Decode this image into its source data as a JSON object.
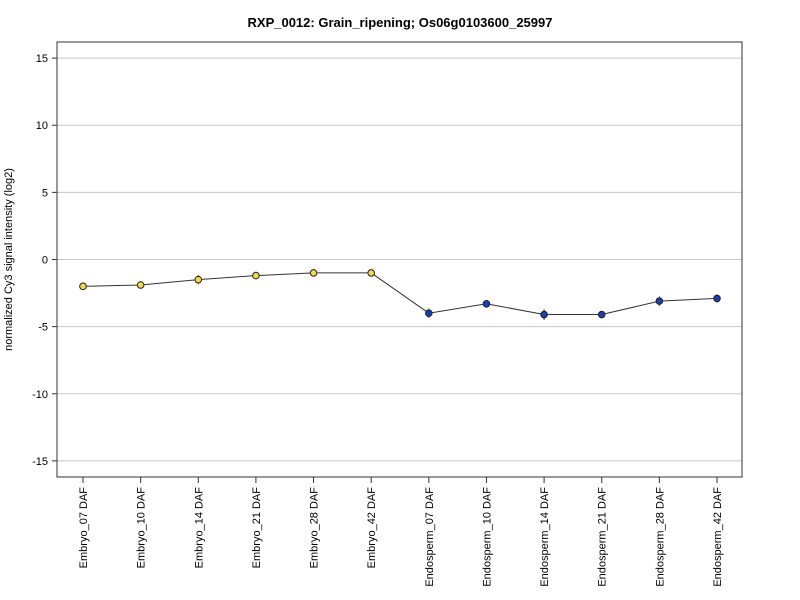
{
  "chart_data": {
    "type": "line",
    "title": "RXP_0012: Grain_ripening; Os06g0103600_25997",
    "ylabel": "normalized Cy3 signal intensity (log2)",
    "xlabel": "",
    "ylim": [
      -16.2,
      16.2
    ],
    "yticks": [
      15,
      10,
      5,
      0,
      -5,
      -10,
      -15
    ],
    "ytick_labels": [
      "15",
      "10",
      "5",
      "0",
      "-5",
      "-10",
      "-15"
    ],
    "grid": true,
    "categories": [
      "Embryo_07 DAF",
      "Embryo_10 DAF",
      "Embryo_14 DAF",
      "Embryo_21 DAF",
      "Embryo_28 DAF",
      "Embryo_42 DAF",
      "Endosperm_07 DAF",
      "Endosperm_10 DAF",
      "Endosperm_14 DAF",
      "Endosperm_21 DAF",
      "Endosperm_28 DAF",
      "Endosperm_42 DAF"
    ],
    "values": [
      -2.0,
      -1.9,
      -1.5,
      -1.2,
      -1.0,
      -1.0,
      -4.0,
      -3.3,
      -4.1,
      -4.1,
      -3.1,
      -2.9
    ],
    "errors": [
      0.05,
      0.05,
      0.35,
      0.1,
      0.05,
      0.05,
      0.35,
      0.05,
      0.4,
      0.05,
      0.35,
      0.3
    ],
    "point_colors": [
      "#f2d84a",
      "#f2d84a",
      "#f2d84a",
      "#f2d84a",
      "#f2d84a",
      "#f2d84a",
      "#1a3fb5",
      "#1a3fb5",
      "#1a3fb5",
      "#1a3fb5",
      "#1a3fb5",
      "#1a3fb5"
    ]
  }
}
